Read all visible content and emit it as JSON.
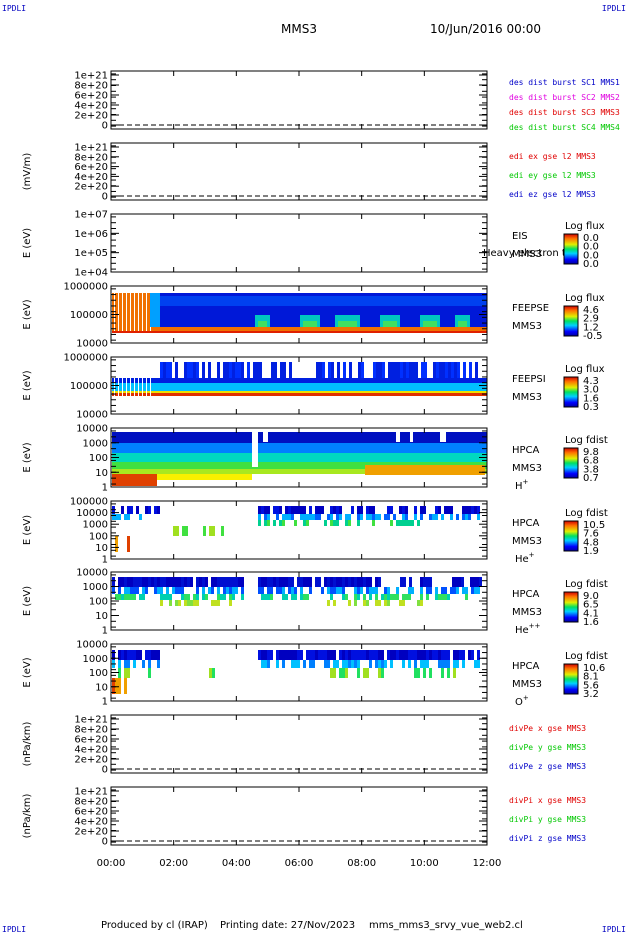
{
  "header": {
    "corner_label": "IPDLI",
    "spacecraft": "MMS3",
    "date_time": "10/Jun/2016 00:00"
  },
  "footer": {
    "credit": "Produced by cl (IRAP)",
    "print_date": "Printing date: 27/Nov/2023",
    "script_name": "mms_mms3_srvy_vue_web2.cl"
  },
  "chart_data": {
    "type": "stacked multi-panel time series and spectrograms",
    "x_ticks": [
      "00:00",
      "02:00",
      "04:00",
      "06:00",
      "08:00",
      "10:00",
      "12:00"
    ],
    "xlim": [
      "00:00",
      "12:00"
    ],
    "panels": [
      {
        "id": "p1",
        "type": "line",
        "ylabel": "",
        "yticks": [
          "0",
          "2e+20",
          "4e+20",
          "6e+20",
          "8e+20",
          "1e+21"
        ],
        "legend": [
          {
            "text": "des dist burst SC1 MMS1",
            "color": "#0000c8"
          },
          {
            "text": "des dist burst SC2 MMS2",
            "color": "#e000e0"
          },
          {
            "text": "des dist burst SC3 MMS3",
            "color": "#e00000"
          },
          {
            "text": "des dist burst SC4 MMS4",
            "color": "#00c800"
          }
        ]
      },
      {
        "id": "p2",
        "type": "line",
        "ylabel": "(mV/m)",
        "yticks": [
          "0",
          "2e+20",
          "4e+20",
          "6e+20",
          "8e+20",
          "1e+21"
        ],
        "legend": [
          {
            "text": "edi ex gse l2 MMS3",
            "color": "#e00000"
          },
          {
            "text": "edi ey gse l2 MMS3",
            "color": "#00c800"
          },
          {
            "text": "edi ez gse l2 MMS3",
            "color": "#0000c8"
          }
        ]
      },
      {
        "id": "p3",
        "type": "heatmap",
        "ylabel": "E (eV)",
        "yticks": [
          "1e+04",
          "1e+05",
          "1e+06",
          "1e+07"
        ],
        "instrument": [
          "EIS",
          "MMS3"
        ],
        "overlay": "Heavy electron tc",
        "cbar_title": "Log flux",
        "cbar_ticks": [
          "0.0",
          "0.0",
          "0.0",
          "0.0"
        ]
      },
      {
        "id": "p4",
        "type": "heatmap",
        "ylabel": "E (eV)",
        "yticks": [
          "10000",
          "100000",
          "1000000"
        ],
        "instrument": [
          "FEEPSE",
          "MMS3"
        ],
        "cbar_title": "Log flux",
        "cbar_ticks": [
          "4.6",
          "2.9",
          "1.2",
          "-0.5"
        ]
      },
      {
        "id": "p5",
        "type": "heatmap",
        "ylabel": "E (eV)",
        "yticks": [
          "10000",
          "100000",
          "1000000"
        ],
        "instrument": [
          "FEEPSI",
          "MMS3"
        ],
        "cbar_title": "Log flux",
        "cbar_ticks": [
          "4.3",
          "3.0",
          "1.6",
          "0.3"
        ]
      },
      {
        "id": "p6",
        "type": "heatmap",
        "ylabel": "E (eV)",
        "yticks": [
          "1",
          "10",
          "100",
          "1000",
          "10000"
        ],
        "instrument": [
          "HPCA",
          "MMS3"
        ],
        "species": "H",
        "charge": "+",
        "cbar_title": "Log fdist",
        "cbar_ticks": [
          "9.8",
          "6.8",
          "3.8",
          "0.7"
        ]
      },
      {
        "id": "p7",
        "type": "heatmap",
        "ylabel": "E (eV)",
        "yticks": [
          "1",
          "10",
          "100",
          "1000",
          "10000",
          "100000"
        ],
        "instrument": [
          "HPCA",
          "MMS3"
        ],
        "species": "He",
        "charge": "+",
        "cbar_title": "Log fdist",
        "cbar_ticks": [
          "10.5",
          "7.6",
          "4.8",
          "1.9"
        ]
      },
      {
        "id": "p8",
        "type": "heatmap",
        "ylabel": "E (eV)",
        "yticks": [
          "1",
          "10",
          "100",
          "1000",
          "10000"
        ],
        "instrument": [
          "HPCA",
          "MMS3"
        ],
        "species": "He",
        "charge": "++",
        "cbar_title": "Log fdist",
        "cbar_ticks": [
          "9.0",
          "6.5",
          "4.1",
          "1.6"
        ]
      },
      {
        "id": "p9",
        "type": "heatmap",
        "ylabel": "E (eV)",
        "yticks": [
          "1",
          "10",
          "100",
          "1000",
          "10000"
        ],
        "instrument": [
          "HPCA",
          "MMS3"
        ],
        "species": "O",
        "charge": "+",
        "cbar_title": "Log fdist",
        "cbar_ticks": [
          "10.6",
          "8.1",
          "5.6",
          "3.2"
        ]
      },
      {
        "id": "p10",
        "type": "line",
        "ylabel": "(nPa/km)",
        "yticks": [
          "0",
          "2e+20",
          "4e+20",
          "6e+20",
          "8e+20",
          "1e+21"
        ],
        "legend": [
          {
            "text": "divPe x gse MMS3",
            "color": "#e00000"
          },
          {
            "text": "divPe y gse MMS3",
            "color": "#00c800"
          },
          {
            "text": "divPe z gse MMS3",
            "color": "#0000c8"
          }
        ]
      },
      {
        "id": "p11",
        "type": "line",
        "ylabel": "(nPa/km)",
        "yticks": [
          "0",
          "2e+20",
          "4e+20",
          "6e+20",
          "8e+20",
          "1e+21"
        ],
        "legend": [
          {
            "text": "divPi x gse MMS3",
            "color": "#e00000"
          },
          {
            "text": "divPi y gse MMS3",
            "color": "#00c800"
          },
          {
            "text": "divPi z gse MMS3",
            "color": "#0000c8"
          }
        ]
      }
    ]
  }
}
